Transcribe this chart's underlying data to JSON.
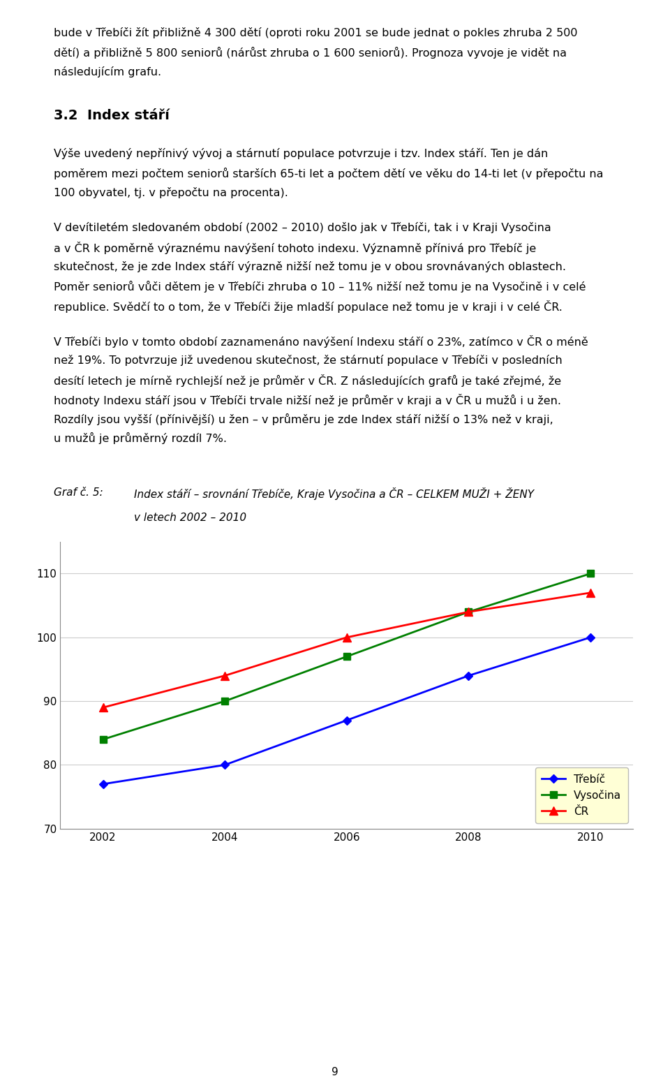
{
  "years": [
    2002,
    2004,
    2006,
    2008,
    2010
  ],
  "trebic": [
    77,
    80,
    87,
    94,
    100
  ],
  "vysocina": [
    84,
    90,
    97,
    104,
    110
  ],
  "cr": [
    89,
    94,
    100,
    104,
    107
  ],
  "trebic_color": "#0000FF",
  "vysocina_color": "#008000",
  "cr_color": "#FF0000",
  "ylim": [
    70,
    115
  ],
  "yticks": [
    70,
    80,
    90,
    100,
    110
  ],
  "xticks": [
    2002,
    2004,
    2006,
    2008,
    2010
  ],
  "legend_labels": [
    "Třebíč",
    "Vysočina",
    "ČR"
  ],
  "legend_bg": "#FFFFCC",
  "page_bg": "#FFFFFF",
  "chart_bg": "#FFFFFF",
  "grid_color": "#CCCCCC",
  "para1": "bude v Třebíči žít přibližně 4 300 dětí (oproti roku 2001 se bude jednat o pokles zhruba 2 500",
  "para1b": "dětí) a přibližně 5 800 seniorů (nárůst zhruba o 1 600 seniorů). Prognoza vyvoje je vidět na",
  "para1c": "následujícím grafu.",
  "section": "3.2  Index stáří",
  "para2a": "Výše uvedený nepřínivý vývoj a stárnutí populace potvrzuje i tzv. Index stáří. Ten je dán",
  "para2b": "poměrem mezi počtem seniorů starších 65-ti let a počtem dětí ve věku do 14-ti let (v přepočtu na",
  "para2c": "100 obyvatel, tj. v přepočtu na procenta).",
  "para3a": "V devítiletém sledovaném období (2002 – 2010) došlo jak v Třebíči, tak i v Kraji Vysočina",
  "para3b": "a v ČR k poměrně výraznému navýšení tohoto indexu. Významně přínivá pro Třebíč je",
  "para3c": "skutečnost, že je zde Index stáří výrazně nižší než tomu je v obou srovnávaných oblastech.",
  "para3d": "Poměr seniorů vůči dětem je v Třebíči zhruba o 10 – 11% nižší než tomu je na Vysočině i v celé",
  "para3e": "republice. Svědčí to o tom, že v Třebíči žije mladší populace než tomu je v kraji i v celé ČR.",
  "para4a": "V Třebíči bylo v tomto období zaznamenáno navýšení Indexu stáří o 23%, zatímco v ČR o méně",
  "para4b": "než 19%. To potvrzuje již uvedenou skutečnost, že stárnutí populace v Třebíči v posledních",
  "para4c": "desítí letech je mírně rychlejší než je průměr v ČR. Z následujících grafů je také zřejmé, že",
  "para4d": "hodnoty Indexu stáří jsou v Třebíči trvale nižší než je průměr v kraji a v ČR u mužů i u žen.",
  "para4e": "Rozdíly jsou vyšší (přínivější) u žen – v průměru je zde Index stáří nižší o 13% než v kraji,",
  "para4f": "u mužů je průměrný rozdíl 7%.",
  "caption_line1": "Graf č. 5:",
  "caption_text1": "Index stáří – srovnání Třebíče, Kraje Vysočina a ČR – CELKEM MUŽI + ŽENY",
  "caption_text2": "v letech 2002 – 2010",
  "page_number": "9"
}
